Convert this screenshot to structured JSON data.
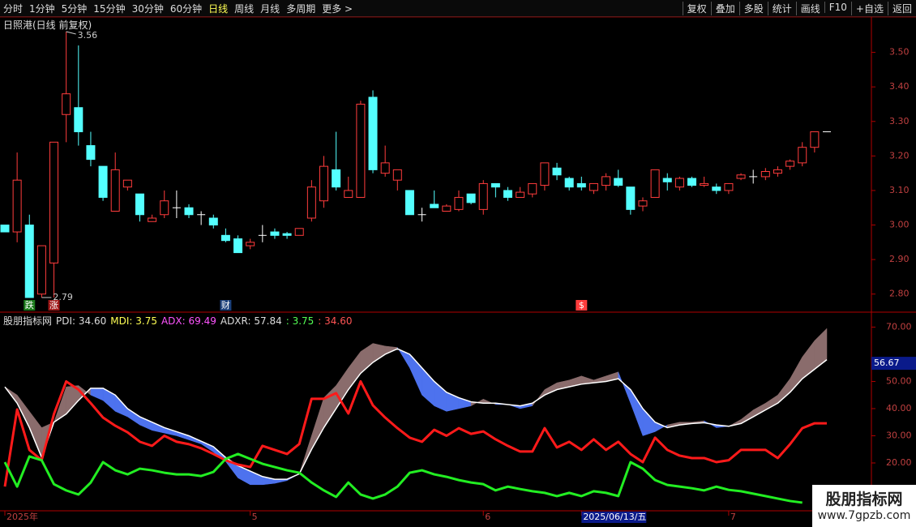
{
  "toolbar": {
    "left": [
      "分时",
      "1分钟",
      "5分钟",
      "15分钟",
      "30分钟",
      "60分钟",
      "日线",
      "周线",
      "月线",
      "多周期",
      "更多 >"
    ],
    "active": 6,
    "right": [
      "复权",
      "叠加",
      "多股",
      "统计",
      "画线",
      "F10",
      "+自选",
      "返回"
    ]
  },
  "chart_data": [
    {
      "type": "candlestick",
      "title": "日照港(日线 前复权)",
      "open": [
        3.0,
        2.98,
        3.0,
        2.8,
        2.89,
        3.32,
        3.34,
        3.23,
        3.17,
        3.04,
        3.11,
        3.09,
        3.01,
        3.03,
        3.05,
        3.05,
        3.03,
        3.02,
        2.97,
        2.96,
        2.94,
        2.97,
        2.98,
        2.975,
        2.97,
        3.02,
        3.07,
        3.16,
        3.08,
        3.08,
        3.37,
        3.15,
        3.13,
        3.1,
        3.03,
        3.06,
        3.04,
        3.045,
        3.09,
        3.045,
        3.12,
        3.1,
        3.08,
        3.09,
        3.115,
        3.165,
        3.135,
        3.12,
        3.1,
        3.115,
        3.135,
        3.11,
        3.055,
        3.08,
        3.135,
        3.11,
        3.135,
        3.115,
        3.11,
        3.1,
        3.135,
        3.14,
        3.14,
        3.15,
        3.17,
        3.18,
        3.225,
        3.27
      ],
      "high": [
        3.0,
        3.21,
        3.03,
        2.94,
        3.24,
        3.56,
        3.52,
        3.27,
        3.17,
        3.21,
        3.13,
        3.09,
        3.03,
        3.1,
        3.1,
        3.06,
        3.04,
        3.03,
        2.99,
        2.97,
        2.96,
        3.0,
        2.99,
        2.98,
        2.99,
        3.13,
        3.2,
        3.27,
        3.14,
        3.36,
        3.39,
        3.23,
        3.16,
        3.1,
        3.05,
        3.1,
        3.06,
        3.1,
        3.09,
        3.13,
        3.12,
        3.11,
        3.11,
        3.12,
        3.18,
        3.18,
        3.14,
        3.14,
        3.12,
        3.15,
        3.16,
        3.11,
        3.08,
        3.16,
        3.15,
        3.14,
        3.14,
        3.14,
        3.12,
        3.12,
        3.15,
        3.16,
        3.165,
        3.17,
        3.19,
        3.24,
        3.27,
        3.27
      ],
      "low": [
        2.98,
        2.95,
        2.79,
        2.79,
        2.79,
        3.24,
        3.23,
        3.17,
        3.07,
        3.04,
        3.1,
        3.01,
        3.01,
        3.02,
        3.02,
        3.02,
        3.0,
        2.99,
        2.95,
        2.92,
        2.93,
        2.95,
        2.96,
        2.96,
        2.97,
        3.01,
        3.05,
        3.1,
        3.08,
        3.08,
        3.15,
        3.14,
        3.1,
        3.03,
        3.01,
        3.05,
        3.04,
        3.04,
        3.06,
        3.03,
        3.08,
        3.07,
        3.08,
        3.08,
        3.1,
        3.13,
        3.1,
        3.1,
        3.09,
        3.1,
        3.11,
        3.03,
        3.04,
        3.08,
        3.1,
        3.1,
        3.11,
        3.11,
        3.09,
        3.09,
        3.13,
        3.12,
        3.13,
        3.14,
        3.16,
        3.17,
        3.21,
        3.27
      ],
      "close": [
        2.98,
        3.13,
        2.79,
        2.94,
        3.24,
        3.38,
        3.27,
        3.19,
        3.08,
        3.16,
        3.13,
        3.03,
        3.02,
        3.07,
        3.05,
        3.03,
        3.03,
        3.0,
        2.955,
        2.92,
        2.95,
        2.97,
        2.97,
        2.97,
        2.99,
        3.11,
        3.17,
        3.11,
        3.1,
        3.35,
        3.16,
        3.18,
        3.16,
        3.03,
        3.03,
        3.05,
        3.055,
        3.08,
        3.065,
        3.12,
        3.11,
        3.08,
        3.095,
        3.12,
        3.18,
        3.145,
        3.11,
        3.11,
        3.12,
        3.14,
        3.115,
        3.045,
        3.07,
        3.16,
        3.125,
        3.135,
        3.115,
        3.12,
        3.1,
        3.12,
        3.145,
        3.14,
        3.155,
        3.16,
        3.185,
        3.225,
        3.27,
        3.27
      ],
      "up_color": "#ff3c3c",
      "down_color": "#54ffff",
      "flat_color": "#ffffff",
      "ylim": [
        2.75,
        3.6
      ],
      "yticks": [
        {
          "value": 2.8,
          "label": "2.80"
        },
        {
          "value": 2.9,
          "label": "2.90"
        },
        {
          "value": 3.0,
          "label": "3.00"
        },
        {
          "value": 3.1,
          "label": "3.10"
        },
        {
          "value": 3.2,
          "label": "3.20"
        },
        {
          "value": 3.3,
          "label": "3.30"
        },
        {
          "value": 3.4,
          "label": "3.40"
        },
        {
          "value": 3.5,
          "label": "3.50"
        }
      ],
      "annotations": [
        {
          "index": 5,
          "value": 3.56,
          "label": "3.56"
        },
        {
          "index": 3,
          "value": 2.79,
          "label": "2.79"
        }
      ],
      "events": [
        {
          "index": 2,
          "label": "跌",
          "color": "#1a7a1a"
        },
        {
          "index": 4,
          "label": "涨",
          "color": "#a01818"
        },
        {
          "index": 18,
          "label": "财",
          "color": "#1a3f7a"
        },
        {
          "index": 47,
          "label": "$",
          "color": "#ff3c3c"
        }
      ]
    },
    {
      "type": "line",
      "legend": [
        {
          "text": "股朋指标网",
          "color": "#dddddd"
        },
        {
          "text": "PDI: 34.60",
          "color": "#dddddd"
        },
        {
          "text": "MDI: 3.75",
          "color": "#ffff54"
        },
        {
          "text": "ADX: 69.49",
          "color": "#ff54ff"
        },
        {
          "text": "ADXR: 57.84",
          "color": "#dddddd"
        },
        {
          "text": ": 3.75",
          "color": "#54ff54"
        },
        {
          "text": ": 34.60",
          "color": "#ff5454"
        }
      ],
      "fill_colors": {
        "above": "#8a6c6c",
        "below": "#4d72ee"
      },
      "series": [
        {
          "name": "ADXR",
          "color": "#ffffff",
          "values": [
            48,
            42,
            33,
            22,
            35,
            38,
            43,
            47.5,
            47.5,
            45,
            40,
            37,
            35,
            33,
            31.5,
            30,
            28,
            26,
            22,
            19,
            17,
            15,
            14,
            14,
            16,
            25,
            33,
            40,
            47,
            53,
            57,
            60,
            62,
            60,
            55,
            50,
            46,
            44,
            42.5,
            42,
            42,
            41.5,
            41,
            42,
            45,
            47,
            48,
            49,
            49.5,
            50,
            51,
            47,
            40,
            35,
            33,
            34,
            34.5,
            34.8,
            34,
            33.5,
            34.5,
            37,
            39.5,
            42,
            46,
            51,
            54.5,
            58
          ]
        },
        {
          "name": "ADX",
          "color": null,
          "values": [
            48,
            45,
            39,
            33,
            35,
            48,
            48.5,
            45,
            43,
            39,
            37,
            34,
            32,
            31,
            30,
            28.5,
            27,
            24,
            20.5,
            14.5,
            12,
            12,
            12.5,
            13.5,
            16,
            30,
            44,
            48.5,
            55,
            61,
            64,
            63,
            62.5,
            55,
            45,
            41,
            39,
            40,
            41,
            43.5,
            41.5,
            41.5,
            40,
            41,
            47,
            49.5,
            50.5,
            52,
            50.5,
            52,
            53.5,
            42,
            30,
            31.5,
            34,
            35,
            35,
            35.5,
            33,
            33.5,
            36,
            39.5,
            42,
            45,
            51,
            59,
            65,
            69.5
          ]
        },
        {
          "name": "PDI",
          "color": "#ff1a1a",
          "values": [
            11.3,
            39.7,
            24.8,
            21,
            38,
            50,
            47,
            42,
            36.7,
            33.7,
            31.3,
            27.8,
            26.3,
            30,
            27.8,
            26.9,
            25.4,
            23.3,
            21,
            19.4,
            18.5,
            26.3,
            24.8,
            23.3,
            27,
            43.6,
            43.6,
            45.7,
            38.2,
            50,
            41.2,
            36.7,
            32.8,
            29.3,
            27.8,
            32.2,
            30,
            32.8,
            30.7,
            31.6,
            28.7,
            26.3,
            24.2,
            24.2,
            32.8,
            25.7,
            27.8,
            24.8,
            28.7,
            24.8,
            27.8,
            23.3,
            20.3,
            29.3,
            24.8,
            22.7,
            21.8,
            21.8,
            20.3,
            21,
            24.8,
            24.8,
            24.8,
            21.8,
            26.9,
            32.8,
            34.6,
            34.6
          ]
        },
        {
          "name": "MDI",
          "color": "#22ee22",
          "values": [
            20.3,
            11.3,
            22.4,
            21,
            12.2,
            9.9,
            8.4,
            12.8,
            20.3,
            17.3,
            15.8,
            17.9,
            17.3,
            16.4,
            15.8,
            15.8,
            15.2,
            16.7,
            21.5,
            23.3,
            21.5,
            19.7,
            18.5,
            17.3,
            16.4,
            12.8,
            9.9,
            7.5,
            12.8,
            8.4,
            6.9,
            8.4,
            11.3,
            16.4,
            17.3,
            15.8,
            14.9,
            13.7,
            12.8,
            12.2,
            9.9,
            11.3,
            10.4,
            9.6,
            9.0,
            7.8,
            9.0,
            7.8,
            9.6,
            9.0,
            7.8,
            20.3,
            17.9,
            13.7,
            11.9,
            11.3,
            10.7,
            9.9,
            11.3,
            10.1,
            9.6,
            8.7,
            7.8,
            6.9,
            6.0,
            5.4,
            null,
            null
          ]
        }
      ],
      "ylim": [
        2.4,
        75.2
      ],
      "yticks": [
        {
          "value": 20,
          "label": "20.00"
        },
        {
          "value": 30,
          "label": "30.00"
        },
        {
          "value": 40,
          "label": "40.00"
        },
        {
          "value": 50,
          "label": "50.00"
        },
        {
          "value": 70,
          "label": "70.00"
        }
      ],
      "current": {
        "value": 56.67,
        "label": "56.67"
      },
      "xticks": [
        {
          "value": 0,
          "label": "2025年"
        },
        {
          "value": 20,
          "label": "5"
        },
        {
          "value": 39,
          "label": "6"
        },
        {
          "value": 47,
          "label": "2025/06/13/五"
        },
        {
          "value": 59,
          "label": "7"
        }
      ],
      "highlight_xtick": 3
    }
  ],
  "watermark": {
    "title": "股朋指标网",
    "url": "www.7gpzb.com"
  }
}
